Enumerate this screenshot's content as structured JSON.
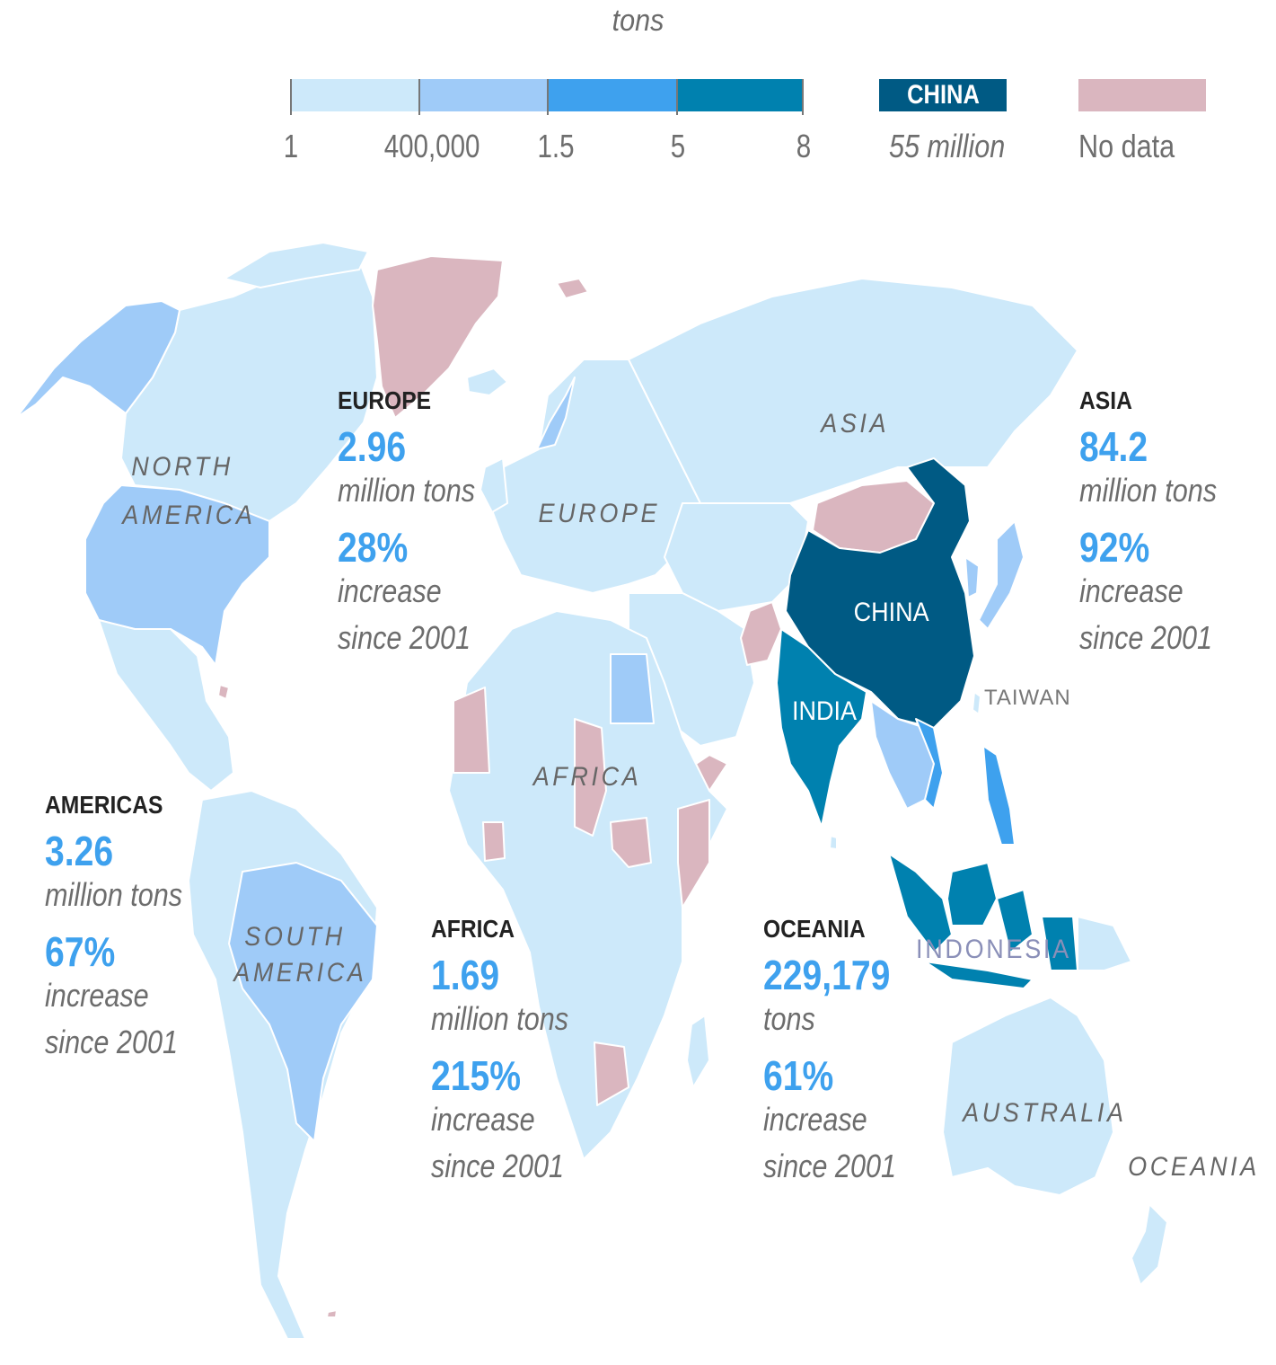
{
  "legend": {
    "unit_title": "tons",
    "bins": [
      {
        "color": "#cde9fa"
      },
      {
        "color": "#9fcbf8"
      },
      {
        "color": "#3ea1ee"
      },
      {
        "color": "#0081af"
      }
    ],
    "tick_labels": [
      "1",
      "400,000",
      "1.5",
      "5",
      "8"
    ],
    "china": {
      "label": "CHINA",
      "value": "55 million",
      "color": "#005a84"
    },
    "no_data": {
      "label": "No data",
      "color": "#dab6bf"
    }
  },
  "stats": {
    "europe": {
      "region": "EUROPE",
      "amount": "2.96",
      "unit": "million tons",
      "pct": "28%",
      "line1": "increase",
      "line2": "since 2001"
    },
    "asia": {
      "region": "ASIA",
      "amount": "84.2",
      "unit": "million tons",
      "pct": "92%",
      "line1": "increase",
      "line2": "since 2001"
    },
    "americas": {
      "region": "AMERICAS",
      "amount": "3.26",
      "unit": "million tons",
      "pct": "67%",
      "line1": "increase",
      "line2": "since 2001"
    },
    "africa": {
      "region": "AFRICA",
      "amount": "1.69",
      "unit": "million tons",
      "pct": "215%",
      "line1": "increase",
      "line2": "since 2001"
    },
    "oceania": {
      "region": "OCEANIA",
      "amount": "229,179",
      "unit": "tons",
      "pct": "61%",
      "line1": "increase",
      "line2": "since 2001"
    }
  },
  "map_labels": {
    "north_america": [
      "NORTH",
      "AMERICA"
    ],
    "south_america": [
      "SOUTH",
      "AMERICA"
    ],
    "europe": "EUROPE",
    "asia": "ASIA",
    "africa": "AFRICA",
    "australia": "AUSTRALIA",
    "oceania": "OCEANIA",
    "china": "CHINA",
    "india": "INDIA",
    "taiwan": "TAIWAN",
    "indonesia": "INDONESIA"
  },
  "colors": {
    "bin1": "#cde9fa",
    "bin2": "#9fcbf8",
    "bin3": "#3ea1ee",
    "bin4": "#0081af",
    "china": "#005a84",
    "no_data": "#dab6bf",
    "border": "#ffffff"
  }
}
